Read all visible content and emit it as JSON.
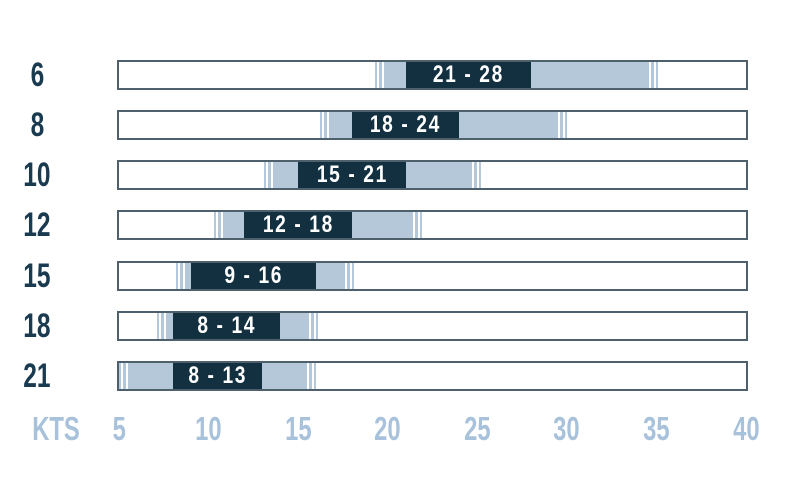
{
  "chart_data": {
    "type": "bar",
    "subtype": "horizontal-range-bars",
    "title": "",
    "grid": false,
    "legend": "none",
    "x_axis": {
      "unit_label": "KTS",
      "min": 5,
      "max": 40,
      "tick_values": [
        5,
        10,
        15,
        20,
        25,
        30,
        35,
        40
      ],
      "tick_labels": [
        "5",
        "10",
        "15",
        "20",
        "25",
        "30",
        "35",
        "40"
      ]
    },
    "y_axis": {
      "categories": [
        "6",
        "8",
        "10",
        "12",
        "15",
        "18",
        "21"
      ]
    },
    "rows": [
      {
        "size": "6",
        "optimal_label": "21 - 28",
        "optimal_range_kts": [
          21,
          28
        ],
        "usable_range_kts": [
          19.3,
          35.1
        ]
      },
      {
        "size": "8",
        "optimal_label": "18 - 24",
        "optimal_range_kts": [
          18,
          24
        ],
        "usable_range_kts": [
          16.2,
          30.0
        ]
      },
      {
        "size": "10",
        "optimal_label": "15 - 21",
        "optimal_range_kts": [
          15,
          21
        ],
        "usable_range_kts": [
          13.1,
          25.2
        ]
      },
      {
        "size": "12",
        "optimal_label": "12 - 18",
        "optimal_range_kts": [
          12,
          18
        ],
        "usable_range_kts": [
          10.3,
          21.9
        ]
      },
      {
        "size": "15",
        "optimal_label": "9 - 16",
        "optimal_range_kts": [
          9,
          16
        ],
        "usable_range_kts": [
          8.2,
          18.1
        ]
      },
      {
        "size": "18",
        "optimal_label": "8 - 14",
        "optimal_range_kts": [
          8,
          14
        ],
        "usable_range_kts": [
          7.1,
          16.1
        ]
      },
      {
        "size": "21",
        "optimal_label": "8 - 13",
        "optimal_range_kts": [
          8,
          13
        ],
        "usable_range_kts": [
          5.0,
          16.0
        ]
      }
    ],
    "colors": {
      "optimal_segment": "#12303f",
      "usable_segment": "#b4c8da",
      "range_text": "#ffffff",
      "row_label_text": "#1a3a50",
      "axis_text": "#a7c2da",
      "bar_border": "#4e606c",
      "background": "#ffffff"
    }
  }
}
